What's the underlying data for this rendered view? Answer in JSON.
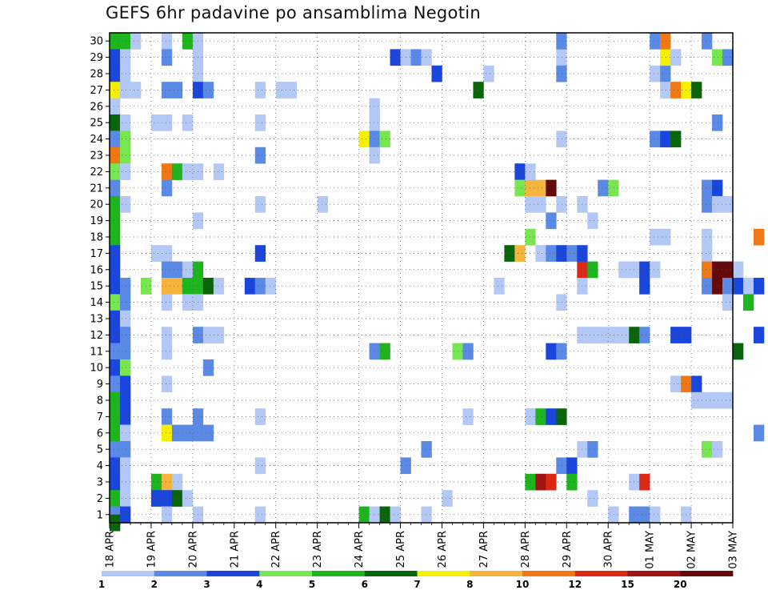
{
  "title": "GEFS 6hr padavine po ansamblima Negotin",
  "chart_data": {
    "type": "heatmap",
    "title": "GEFS 6hr padavine po ansamblima Negotin",
    "xlabel": "",
    "ylabel": "",
    "x_steps_per_day": 4,
    "x_total_steps": 60,
    "x_tick_labels": [
      "18 APR",
      "19 APR",
      "20 APR",
      "21 APR",
      "22 APR",
      "23 APR",
      "24 APR",
      "25 APR",
      "26 APR",
      "27 APR",
      "28 APR",
      "29 APR",
      "30 APR",
      "01 MAY",
      "02 MAY",
      "03 MAY"
    ],
    "y_range": [
      1,
      30
    ],
    "y_ticks": [
      1,
      2,
      3,
      4,
      5,
      6,
      7,
      8,
      9,
      10,
      11,
      12,
      13,
      14,
      15,
      16,
      17,
      18,
      19,
      20,
      21,
      22,
      23,
      24,
      25,
      26,
      27,
      28,
      29,
      30
    ],
    "grid": true,
    "colorbar": {
      "labels": [
        "1",
        "2",
        "3",
        "4",
        "5",
        "6",
        "7",
        "8",
        "10",
        "12",
        "15",
        "20"
      ],
      "colors": [
        "#b4c8f5",
        "#5a8ae6",
        "#1a46dc",
        "#78e650",
        "#1eb41e",
        "#0a640a",
        "#f5f000",
        "#f5b43c",
        "#f07814",
        "#dc2814",
        "#a01414",
        "#640a0a"
      ]
    },
    "cells": [
      [
        0,
        30,
        5
      ],
      [
        0,
        29,
        3
      ],
      [
        0,
        28,
        3
      ],
      [
        0,
        27,
        7
      ],
      [
        0,
        26,
        1
      ],
      [
        0,
        25,
        6
      ],
      [
        0,
        24,
        2
      ],
      [
        0,
        23,
        9
      ],
      [
        0,
        22,
        4
      ],
      [
        0,
        21,
        2
      ],
      [
        0,
        20,
        5
      ],
      [
        0,
        19,
        5
      ],
      [
        0,
        18,
        5
      ],
      [
        0,
        17,
        3
      ],
      [
        0,
        16,
        3
      ],
      [
        0,
        15,
        3
      ],
      [
        0,
        14,
        4
      ],
      [
        0,
        13,
        3
      ],
      [
        0,
        12,
        3
      ],
      [
        0,
        11,
        2
      ],
      [
        0,
        10,
        3
      ],
      [
        0,
        9,
        2
      ],
      [
        0,
        8,
        5
      ],
      [
        0,
        7,
        5
      ],
      [
        0,
        6,
        5
      ],
      [
        0,
        5,
        2
      ],
      [
        0,
        4,
        3
      ],
      [
        0,
        3,
        3
      ],
      [
        0,
        2,
        5
      ],
      [
        0,
        1,
        2
      ],
      [
        0,
        0.5,
        6
      ],
      [
        1,
        30,
        5
      ],
      [
        1,
        29,
        1
      ],
      [
        1,
        28,
        1
      ],
      [
        1,
        27,
        1
      ],
      [
        1,
        25,
        1
      ],
      [
        1,
        24,
        4
      ],
      [
        1,
        23,
        4
      ],
      [
        1,
        22,
        1
      ],
      [
        1,
        20,
        1
      ],
      [
        1,
        15,
        2
      ],
      [
        1,
        14,
        2
      ],
      [
        1,
        13,
        1
      ],
      [
        1,
        12,
        2
      ],
      [
        1,
        11,
        2
      ],
      [
        1,
        10,
        4
      ],
      [
        1,
        9,
        3
      ],
      [
        1,
        8,
        3
      ],
      [
        1,
        7,
        3
      ],
      [
        1,
        6,
        1
      ],
      [
        1,
        5,
        2
      ],
      [
        1,
        4,
        1
      ],
      [
        1,
        3,
        1
      ],
      [
        1,
        2,
        1
      ],
      [
        1,
        1,
        3
      ],
      [
        2,
        30,
        1
      ],
      [
        2,
        27,
        1
      ],
      [
        4,
        25,
        1
      ],
      [
        4,
        17,
        1
      ],
      [
        4,
        3,
        5
      ],
      [
        4,
        2,
        3
      ],
      [
        3,
        15,
        4
      ],
      [
        3,
        15,
        4
      ],
      [
        5,
        14,
        1
      ],
      [
        5,
        14,
        1
      ],
      [
        5,
        30,
        1
      ],
      [
        5,
        29,
        2
      ],
      [
        5,
        27,
        2
      ],
      [
        5,
        25,
        1
      ],
      [
        5,
        22,
        9
      ],
      [
        5,
        21,
        2
      ],
      [
        5,
        17,
        1
      ],
      [
        5,
        16,
        2
      ],
      [
        5,
        15,
        8
      ],
      [
        5,
        12,
        1
      ],
      [
        5,
        11,
        1
      ],
      [
        5,
        9,
        1
      ],
      [
        5,
        7,
        2
      ],
      [
        5,
        6,
        7
      ],
      [
        5,
        3,
        8
      ],
      [
        5,
        2,
        3
      ],
      [
        5,
        1,
        1
      ],
      [
        6,
        27,
        2
      ],
      [
        6,
        22,
        5
      ],
      [
        6,
        16,
        2
      ],
      [
        6,
        15,
        8
      ],
      [
        6,
        6,
        2
      ],
      [
        6,
        3,
        1
      ],
      [
        6,
        2,
        6
      ],
      [
        7,
        30,
        5
      ],
      [
        7,
        25,
        1
      ],
      [
        7,
        22,
        1
      ],
      [
        7,
        16,
        1
      ],
      [
        7,
        15,
        5
      ],
      [
        7,
        14,
        1
      ],
      [
        7,
        6,
        2
      ],
      [
        7,
        2,
        1
      ],
      [
        8,
        30,
        1
      ],
      [
        8,
        29,
        1
      ],
      [
        8,
        28,
        1
      ],
      [
        8,
        27,
        3
      ],
      [
        8,
        22,
        1
      ],
      [
        8,
        19,
        1
      ],
      [
        8,
        16,
        5
      ],
      [
        8,
        15,
        5
      ],
      [
        8,
        14,
        1
      ],
      [
        8,
        12,
        2
      ],
      [
        8,
        7,
        2
      ],
      [
        8,
        6,
        2
      ],
      [
        8,
        1,
        1
      ],
      [
        9,
        27,
        2
      ],
      [
        9,
        15,
        6
      ],
      [
        9,
        12,
        1
      ],
      [
        9,
        10,
        2
      ],
      [
        9,
        6,
        2
      ],
      [
        10,
        22,
        1
      ],
      [
        10,
        15,
        1
      ],
      [
        10,
        12,
        1
      ],
      [
        13,
        15,
        3
      ],
      [
        14,
        27,
        1
      ],
      [
        14,
        25,
        1
      ],
      [
        14,
        23,
        2
      ],
      [
        14,
        20,
        1
      ],
      [
        14,
        17,
        3
      ],
      [
        14,
        15,
        2
      ],
      [
        14,
        7,
        1
      ],
      [
        14,
        4,
        1
      ],
      [
        14,
        1,
        1
      ],
      [
        15,
        15,
        1
      ],
      [
        16,
        27,
        1
      ],
      [
        17,
        27,
        1
      ],
      [
        20,
        20,
        1
      ],
      [
        24,
        24,
        7
      ],
      [
        24,
        1,
        5
      ],
      [
        25,
        26,
        1
      ],
      [
        25,
        25,
        1
      ],
      [
        25,
        24,
        2
      ],
      [
        25,
        23,
        1
      ],
      [
        25,
        11,
        2
      ],
      [
        25,
        1,
        1
      ],
      [
        26,
        24,
        4
      ],
      [
        26,
        11,
        5
      ],
      [
        26,
        1,
        6
      ],
      [
        27,
        29,
        3
      ],
      [
        27,
        1,
        1
      ],
      [
        28,
        29,
        1
      ],
      [
        28,
        4,
        2
      ],
      [
        29,
        29,
        2
      ],
      [
        30,
        29,
        1
      ],
      [
        30,
        5,
        2
      ],
      [
        30,
        1,
        1
      ],
      [
        31,
        28,
        3
      ],
      [
        32,
        2,
        1
      ],
      [
        33,
        11,
        4
      ],
      [
        34,
        11,
        2
      ],
      [
        34,
        7,
        1
      ],
      [
        35,
        27,
        6
      ],
      [
        36,
        28,
        1
      ],
      [
        37,
        15,
        1
      ],
      [
        38,
        17,
        6
      ],
      [
        39,
        17,
        8
      ],
      [
        39,
        22,
        3
      ],
      [
        39,
        21,
        4
      ],
      [
        40,
        21,
        8
      ],
      [
        40,
        20,
        1
      ],
      [
        40,
        18,
        4
      ],
      [
        40,
        22,
        1
      ],
      [
        40,
        3,
        5
      ],
      [
        40,
        7,
        1
      ],
      [
        41,
        21,
        8
      ],
      [
        41,
        20,
        1
      ],
      [
        41,
        17,
        1
      ],
      [
        41,
        3,
        11
      ],
      [
        41,
        7,
        5
      ],
      [
        42,
        21,
        12
      ],
      [
        42,
        19,
        2
      ],
      [
        42,
        17,
        2
      ],
      [
        42,
        11,
        3
      ],
      [
        42,
        3,
        10
      ],
      [
        42,
        7,
        3
      ],
      [
        43,
        20,
        1
      ],
      [
        43,
        17,
        3
      ],
      [
        43,
        14,
        1
      ],
      [
        43,
        11,
        2
      ],
      [
        43,
        29,
        1
      ],
      [
        43,
        28,
        2
      ],
      [
        43,
        24,
        1
      ],
      [
        43,
        30,
        2
      ],
      [
        43,
        7,
        6
      ],
      [
        43,
        4,
        2
      ],
      [
        44,
        17,
        2
      ],
      [
        44,
        4,
        3
      ],
      [
        44,
        3,
        5
      ],
      [
        45,
        16,
        10
      ],
      [
        45,
        15,
        1
      ],
      [
        45,
        17,
        3
      ],
      [
        45,
        12,
        1
      ],
      [
        45,
        20,
        1
      ],
      [
        45,
        5,
        1
      ],
      [
        46,
        16,
        5
      ],
      [
        46,
        12,
        1
      ],
      [
        46,
        19,
        1
      ],
      [
        46,
        5,
        2
      ],
      [
        46,
        2,
        1
      ],
      [
        47,
        21,
        2
      ],
      [
        47,
        12,
        1
      ],
      [
        48,
        21,
        4
      ],
      [
        48,
        12,
        1
      ],
      [
        48,
        1,
        1
      ],
      [
        49,
        16,
        1
      ],
      [
        49,
        12,
        1
      ],
      [
        50,
        16,
        1
      ],
      [
        50,
        12,
        6
      ],
      [
        50,
        3,
        1
      ],
      [
        50,
        1,
        2
      ],
      [
        51,
        16,
        3
      ],
      [
        51,
        15,
        3
      ],
      [
        51,
        12,
        2
      ],
      [
        51,
        3,
        10
      ],
      [
        51,
        1,
        2
      ],
      [
        52,
        24,
        2
      ],
      [
        52,
        16,
        1
      ],
      [
        52,
        30,
        2
      ],
      [
        52,
        28,
        1
      ],
      [
        52,
        18,
        1
      ],
      [
        52,
        1,
        1
      ],
      [
        53,
        24,
        3
      ],
      [
        53,
        28,
        2
      ],
      [
        53,
        27,
        1
      ],
      [
        53,
        29,
        7
      ],
      [
        53,
        30,
        9
      ],
      [
        53,
        18,
        1
      ],
      [
        54,
        24,
        6
      ],
      [
        54,
        27,
        9
      ],
      [
        54,
        29,
        1
      ],
      [
        54,
        12,
        3
      ],
      [
        54,
        9,
        1
      ],
      [
        55,
        27,
        7
      ],
      [
        55,
        12,
        3
      ],
      [
        55,
        9,
        9
      ],
      [
        55,
        1,
        1
      ],
      [
        56,
        27,
        6
      ],
      [
        56,
        9,
        3
      ],
      [
        56,
        8,
        1
      ],
      [
        57,
        30,
        2
      ],
      [
        57,
        20,
        2
      ],
      [
        57,
        21,
        2
      ],
      [
        57,
        17,
        1
      ],
      [
        57,
        18,
        1
      ],
      [
        57,
        16,
        9
      ],
      [
        57,
        15,
        2
      ],
      [
        57,
        8,
        1
      ],
      [
        57,
        5,
        4
      ],
      [
        58,
        29,
        4
      ],
      [
        58,
        25,
        2
      ],
      [
        58,
        21,
        3
      ],
      [
        58,
        20,
        1
      ],
      [
        58,
        16,
        12
      ],
      [
        58,
        15,
        12
      ],
      [
        58,
        8,
        1
      ],
      [
        58,
        5,
        1
      ],
      [
        59,
        29,
        2
      ],
      [
        59,
        20,
        1
      ],
      [
        59,
        16,
        12
      ],
      [
        59,
        15,
        2
      ],
      [
        59,
        14,
        1
      ],
      [
        59,
        8,
        1
      ],
      [
        60,
        16,
        1
      ],
      [
        60,
        15,
        3
      ],
      [
        60,
        11,
        6
      ],
      [
        61,
        15,
        1
      ],
      [
        61,
        14,
        5
      ],
      [
        62,
        18,
        9
      ],
      [
        62,
        15,
        3
      ],
      [
        62,
        12,
        3
      ],
      [
        62,
        6,
        2
      ]
    ]
  }
}
